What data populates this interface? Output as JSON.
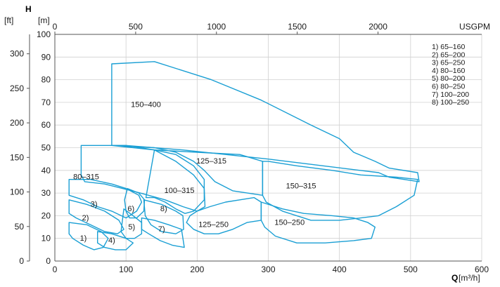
{
  "chart_data": {
    "type": "area",
    "x_axis": {
      "label": "Q",
      "unit": "[m³/h]",
      "min": 0,
      "max": 600,
      "ticks": [
        0,
        100,
        200,
        300,
        400,
        500,
        600
      ]
    },
    "y_axis": {
      "label": "H",
      "unit": "[m]",
      "min": 0,
      "max": 100,
      "ticks": [
        0,
        10,
        20,
        30,
        40,
        50,
        60,
        70,
        80,
        90,
        100
      ]
    },
    "y2_axis": {
      "unit": "[ft]",
      "ticks": [
        0,
        50,
        100,
        150,
        200,
        250,
        300
      ]
    },
    "x2_axis": {
      "unit": "USGPM",
      "ticks": [
        0,
        500,
        1000,
        1500,
        2000
      ]
    },
    "legend": [
      "1) 65–160",
      "2) 65–200",
      "3) 65–250",
      "4) 80–160",
      "5) 80–200",
      "6) 80–250",
      "7) 100–200",
      "8) 100–250"
    ],
    "grid": true,
    "colors": {
      "curve": "#1a9fd4",
      "accent": "#1a9fd4",
      "grid": "#d0d0d0",
      "text": "#1a1a1a"
    },
    "regions": [
      {
        "name": "150–400",
        "label_at": [
          128,
          68
        ],
        "points": [
          [
            80,
            87
          ],
          [
            140,
            88
          ],
          [
            220,
            80
          ],
          [
            290,
            71
          ],
          [
            360,
            60
          ],
          [
            400,
            54
          ],
          [
            420,
            48
          ],
          [
            450,
            44
          ],
          [
            470,
            41
          ],
          [
            510,
            39
          ],
          [
            512,
            35
          ],
          [
            470,
            37
          ],
          [
            455,
            39
          ],
          [
            300,
            45
          ],
          [
            180,
            49
          ],
          [
            100,
            51
          ],
          [
            80,
            51
          ]
        ]
      },
      {
        "name": "80–315",
        "label_at": [
          44,
          36
        ],
        "points": [
          [
            37,
            51
          ],
          [
            80,
            51
          ],
          [
            100,
            51
          ],
          [
            140,
            49
          ],
          [
            170,
            44
          ],
          [
            195,
            38
          ],
          [
            210,
            32
          ],
          [
            211,
            24
          ],
          [
            200,
            22
          ],
          [
            180,
            24
          ],
          [
            155,
            27
          ],
          [
            120,
            30
          ],
          [
            95,
            32
          ],
          [
            70,
            34
          ],
          [
            42,
            35
          ],
          [
            37,
            38
          ]
        ]
      },
      {
        "name": "125–315",
        "label_at": [
          220,
          43
        ],
        "points": [
          [
            80,
            51
          ],
          [
            140,
            49
          ],
          [
            200,
            48
          ],
          [
            260,
            47
          ],
          [
            292,
            44
          ],
          [
            292,
            29
          ],
          [
            250,
            31
          ],
          [
            225,
            35
          ],
          [
            210,
            40
          ],
          [
            195,
            44
          ],
          [
            170,
            48
          ],
          [
            140,
            50
          ]
        ]
      },
      {
        "name": "100–315",
        "label_at": [
          175,
          30
        ],
        "points": [
          [
            140,
            49
          ],
          [
            170,
            47
          ],
          [
            195,
            42
          ],
          [
            210,
            36
          ],
          [
            210,
            27
          ],
          [
            195,
            22
          ],
          [
            183,
            21
          ],
          [
            170,
            23
          ],
          [
            155,
            26
          ],
          [
            140,
            28
          ],
          [
            128,
            28
          ]
        ]
      },
      {
        "name": "150–315",
        "label_at": [
          346,
          32
        ],
        "points": [
          [
            292,
            44
          ],
          [
            300,
            44
          ],
          [
            340,
            42
          ],
          [
            390,
            40
          ],
          [
            430,
            38
          ],
          [
            480,
            37
          ],
          [
            510,
            36
          ],
          [
            505,
            29
          ],
          [
            480,
            24
          ],
          [
            455,
            20
          ],
          [
            430,
            19
          ],
          [
            400,
            18
          ],
          [
            360,
            18
          ],
          [
            320,
            22
          ],
          [
            297,
            26
          ],
          [
            292,
            29
          ]
        ]
      },
      {
        "name": "125–250",
        "label_at": [
          223,
          15
        ],
        "points": [
          [
            200,
            22
          ],
          [
            218,
            24
          ],
          [
            240,
            26
          ],
          [
            260,
            27
          ],
          [
            280,
            28
          ],
          [
            290,
            26
          ],
          [
            290,
            18
          ],
          [
            270,
            17
          ],
          [
            250,
            14
          ],
          [
            230,
            12
          ],
          [
            210,
            12
          ],
          [
            195,
            14
          ],
          [
            185,
            17
          ],
          [
            190,
            20
          ]
        ]
      },
      {
        "name": "150–250",
        "label_at": [
          330,
          16
        ],
        "points": [
          [
            290,
            26
          ],
          [
            320,
            23
          ],
          [
            350,
            21
          ],
          [
            390,
            20
          ],
          [
            420,
            19
          ],
          [
            440,
            17
          ],
          [
            450,
            15
          ],
          [
            445,
            10
          ],
          [
            420,
            9
          ],
          [
            380,
            8
          ],
          [
            340,
            8
          ],
          [
            310,
            11
          ],
          [
            295,
            15
          ],
          [
            290,
            18
          ]
        ]
      },
      {
        "name": "3)",
        "label_at": [
          55,
          24
        ],
        "points": [
          [
            20,
            36
          ],
          [
            50,
            36
          ],
          [
            80,
            34
          ],
          [
            100,
            32
          ],
          [
            118,
            29
          ],
          [
            122,
            26
          ],
          [
            115,
            22
          ],
          [
            100,
            19
          ],
          [
            80,
            22
          ],
          [
            60,
            24
          ],
          [
            40,
            27
          ],
          [
            20,
            29
          ]
        ]
      },
      {
        "name": "6)",
        "label_at": [
          107,
          22
        ],
        "points": [
          [
            102,
            32
          ],
          [
            118,
            30
          ],
          [
            126,
            27
          ],
          [
            125,
            22
          ],
          [
            115,
            19
          ],
          [
            105,
            19
          ],
          [
            100,
            22
          ],
          [
            98,
            27
          ]
        ]
      },
      {
        "name": "8)",
        "label_at": [
          153,
          22
        ],
        "points": [
          [
            125,
            27
          ],
          [
            150,
            25
          ],
          [
            170,
            22
          ],
          [
            180,
            20
          ],
          [
            181,
            14
          ],
          [
            170,
            12
          ],
          [
            150,
            13
          ],
          [
            135,
            16
          ],
          [
            127,
            20
          ]
        ]
      },
      {
        "name": "2)",
        "label_at": [
          43,
          18
        ],
        "points": [
          [
            20,
            27
          ],
          [
            45,
            25
          ],
          [
            70,
            22
          ],
          [
            90,
            18
          ],
          [
            97,
            14
          ],
          [
            88,
            12
          ],
          [
            70,
            13
          ],
          [
            50,
            16
          ],
          [
            30,
            19
          ],
          [
            20,
            21
          ]
        ]
      },
      {
        "name": "5)",
        "label_at": [
          108,
          14
        ],
        "points": [
          [
            97,
            23
          ],
          [
            110,
            20
          ],
          [
            122,
            17
          ],
          [
            122,
            12
          ],
          [
            112,
            10
          ],
          [
            100,
            10
          ],
          [
            93,
            13
          ],
          [
            95,
            18
          ]
        ]
      },
      {
        "name": "7)",
        "label_at": [
          150,
          13
        ],
        "points": [
          [
            122,
            19
          ],
          [
            140,
            18
          ],
          [
            160,
            16
          ],
          [
            178,
            14
          ],
          [
            182,
            6
          ],
          [
            165,
            7
          ],
          [
            148,
            9
          ],
          [
            132,
            12
          ],
          [
            122,
            14
          ]
        ]
      },
      {
        "name": "1)",
        "label_at": [
          40,
          9
        ],
        "points": [
          [
            20,
            17
          ],
          [
            45,
            16
          ],
          [
            65,
            13
          ],
          [
            75,
            10
          ],
          [
            68,
            6
          ],
          [
            55,
            5
          ],
          [
            40,
            7
          ],
          [
            25,
            10
          ],
          [
            20,
            12
          ]
        ]
      },
      {
        "name": "4)",
        "label_at": [
          80,
          8
        ],
        "points": [
          [
            60,
            13
          ],
          [
            80,
            12
          ],
          [
            100,
            10
          ],
          [
            110,
            8
          ],
          [
            100,
            5
          ],
          [
            85,
            5
          ],
          [
            70,
            6
          ],
          [
            60,
            8
          ]
        ]
      }
    ]
  }
}
